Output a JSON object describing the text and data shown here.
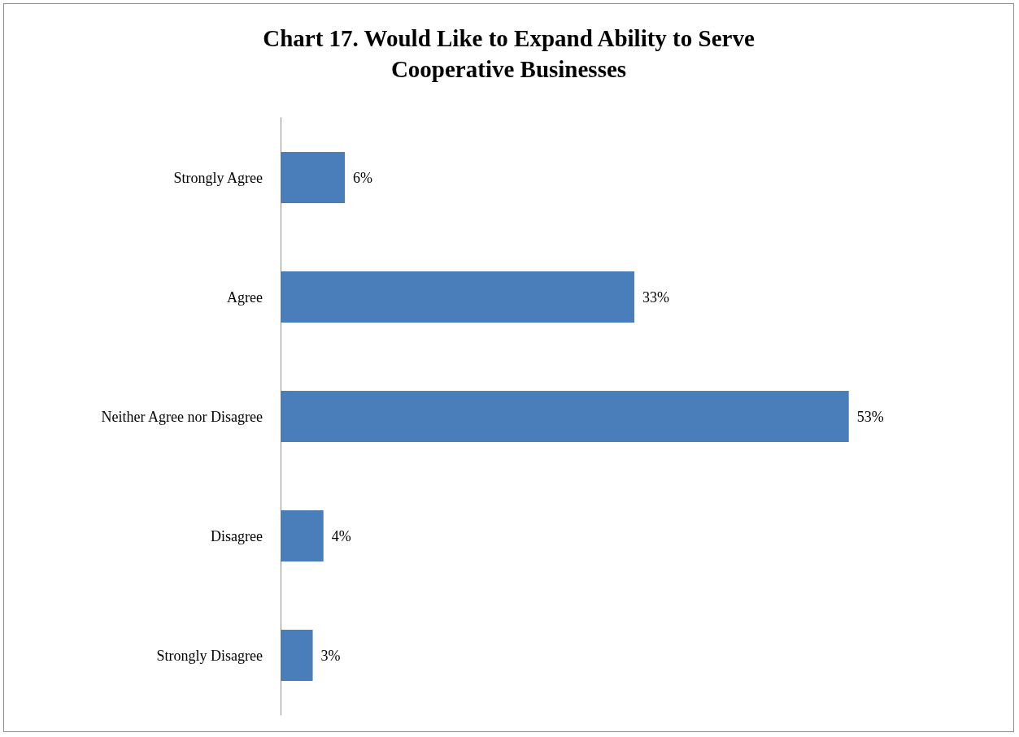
{
  "chart_data": {
    "type": "bar",
    "orientation": "horizontal",
    "title": "Chart 17. Would Like to Expand Ability to Serve\nCooperative Businesses",
    "categories": [
      "Strongly Agree",
      "Agree",
      "Neither Agree nor Disagree",
      "Disagree",
      "Strongly Disagree"
    ],
    "values": [
      6,
      33,
      53,
      4,
      3
    ],
    "value_labels": [
      "6%",
      "33%",
      "53%",
      "4%",
      "3%"
    ],
    "color": "#4a7ebb",
    "grid": false
  }
}
